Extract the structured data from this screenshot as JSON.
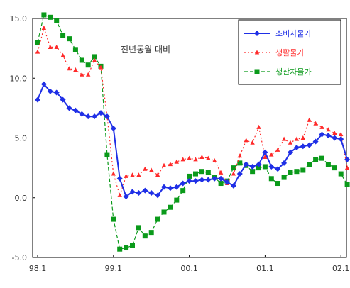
{
  "chart_data": {
    "type": "line",
    "title": "",
    "xlabel": "",
    "ylabel": "",
    "annotation": "전년동월 대비",
    "ylim": [
      -5,
      15
    ],
    "yticks": [
      {
        "value": 15,
        "label": "15.0"
      },
      {
        "value": 10,
        "label": "10.0"
      },
      {
        "value": 5,
        "label": "5.0"
      },
      {
        "value": 0,
        "label": "0.0"
      },
      {
        "value": -5,
        "label": "-5.0"
      }
    ],
    "xticks": [
      {
        "index": 0,
        "label": "98.1"
      },
      {
        "index": 12,
        "label": "99.1"
      },
      {
        "index": 24,
        "label": "00.1"
      },
      {
        "index": 36,
        "label": "01.1"
      },
      {
        "index": 48,
        "label": "02.1"
      }
    ],
    "grid": false,
    "legend": "top-right",
    "series": [
      {
        "name": "소비자물가",
        "color": "#1f2fe6",
        "marker": "diamond",
        "dash": "solid",
        "values": [
          8.2,
          9.5,
          8.9,
          8.8,
          8.2,
          7.5,
          7.3,
          7.0,
          6.8,
          6.8,
          7.1,
          6.8,
          5.8,
          1.6,
          0.1,
          0.5,
          0.4,
          0.6,
          0.4,
          0.2,
          0.9,
          0.8,
          0.9,
          1.2,
          1.4,
          1.4,
          1.5,
          1.5,
          1.6,
          1.6,
          1.3,
          1.0,
          2.0,
          2.8,
          2.6,
          2.8,
          3.8,
          2.6,
          2.4,
          2.9,
          3.8,
          4.2,
          4.3,
          4.4,
          4.7,
          5.3,
          5.2,
          5.0,
          4.9,
          3.2
        ]
      },
      {
        "name": "생활물가",
        "color": "#ff2a2a",
        "marker": "triangle",
        "dash": "dotted",
        "values": [
          12.2,
          14.2,
          12.6,
          12.6,
          11.9,
          10.8,
          10.7,
          10.3,
          10.3,
          11.5,
          10.9,
          6.8,
          2.0,
          0.2,
          1.8,
          1.9,
          1.9,
          2.4,
          2.3,
          1.9,
          2.7,
          2.8,
          3.0,
          3.2,
          3.3,
          3.2,
          3.4,
          3.3,
          3.1,
          2.1,
          1.2,
          2.0,
          3.5,
          4.8,
          4.6,
          5.9,
          3.4,
          3.6,
          4.0,
          4.9,
          4.6,
          4.9,
          5.0,
          6.5,
          6.2,
          5.9,
          5.7,
          5.4,
          5.3,
          2.5
        ]
      },
      {
        "name": "생산자물가",
        "color": "#0a9a1a",
        "marker": "square",
        "dash": "dashed",
        "values": [
          13.0,
          15.3,
          15.1,
          14.8,
          13.6,
          13.3,
          12.4,
          11.5,
          11.1,
          11.8,
          11.0,
          3.6,
          -1.8,
          -4.3,
          -4.2,
          -4.0,
          -2.5,
          -3.2,
          -2.9,
          -1.8,
          -1.2,
          -0.8,
          -0.2,
          0.6,
          1.8,
          2.0,
          2.2,
          2.1,
          1.7,
          1.2,
          1.4,
          2.5,
          2.9,
          2.7,
          2.2,
          2.5,
          2.6,
          1.6,
          1.2,
          1.7,
          2.1,
          2.2,
          2.3,
          2.8,
          3.2,
          3.3,
          2.8,
          2.5,
          2.0,
          1.1
        ]
      }
    ]
  }
}
